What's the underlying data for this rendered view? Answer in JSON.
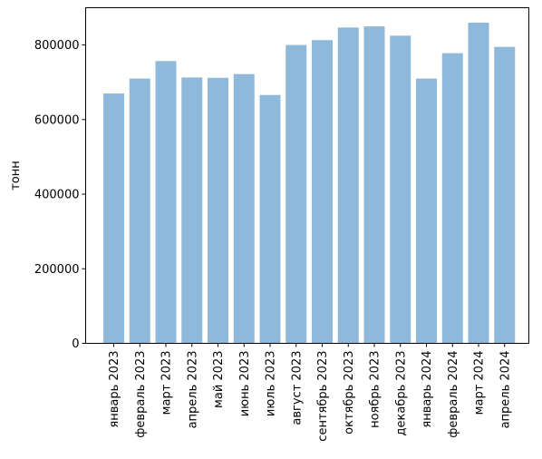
{
  "chart_data": {
    "type": "bar",
    "title": "",
    "xlabel": "",
    "ylabel": "тонн",
    "categories": [
      "январь 2023",
      "февраль 2023",
      "март 2023",
      "апрель 2023",
      "май 2023",
      "июнь 2023",
      "июль 2023",
      "август 2023",
      "сентябрь 2023",
      "октябрь 2023",
      "ноябрь 2023",
      "декабрь 2023",
      "январь 2024",
      "февраль 2024",
      "март 2024",
      "апрель 2024"
    ],
    "values": [
      670000,
      710000,
      757000,
      713000,
      712000,
      722000,
      666000,
      800000,
      813000,
      847000,
      850000,
      825000,
      710000,
      778000,
      860000,
      795000
    ],
    "ylim": [
      0,
      900000
    ],
    "yticks": [
      0,
      200000,
      400000,
      600000,
      800000
    ],
    "ytick_labels": [
      "0",
      "200000",
      "400000",
      "600000",
      "800000"
    ],
    "bar_color": "#8fb9da",
    "grid": false,
    "legend": "none"
  }
}
